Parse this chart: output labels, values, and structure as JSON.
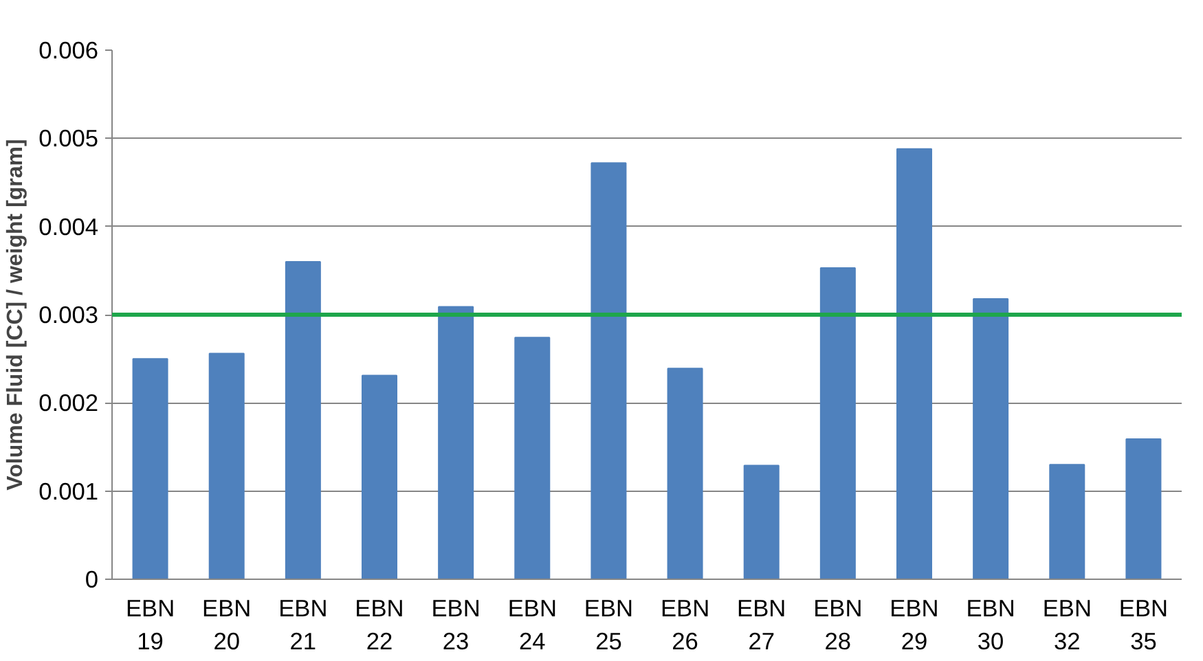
{
  "chart_data": {
    "type": "bar",
    "ylabel": "Volume Fluid [CC] / weight [gram]",
    "categories": [
      "EBN 19",
      "EBN 20",
      "EBN 21",
      "EBN 22",
      "EBN 23",
      "EBN 24",
      "EBN 25",
      "EBN 26",
      "EBN 27",
      "EBN 28",
      "EBN 29",
      "EBN 30",
      "EBN 32",
      "EBN 35"
    ],
    "values": [
      0.0025,
      0.00256,
      0.0036,
      0.00231,
      0.00309,
      0.00274,
      0.00472,
      0.00239,
      0.00129,
      0.00353,
      0.00488,
      0.00318,
      0.0013,
      0.00159
    ],
    "color": "#4f81bd",
    "ylim": [
      0,
      0.006
    ],
    "yticks": [
      {
        "value": 0,
        "label": "0"
      },
      0.001,
      0.002,
      0.003,
      0.004,
      0.005,
      0.006
    ],
    "ref_lines": [
      {
        "axis": "y",
        "value": 0.003,
        "label": null,
        "color": "#1ea64b"
      }
    ],
    "grid": "y"
  }
}
